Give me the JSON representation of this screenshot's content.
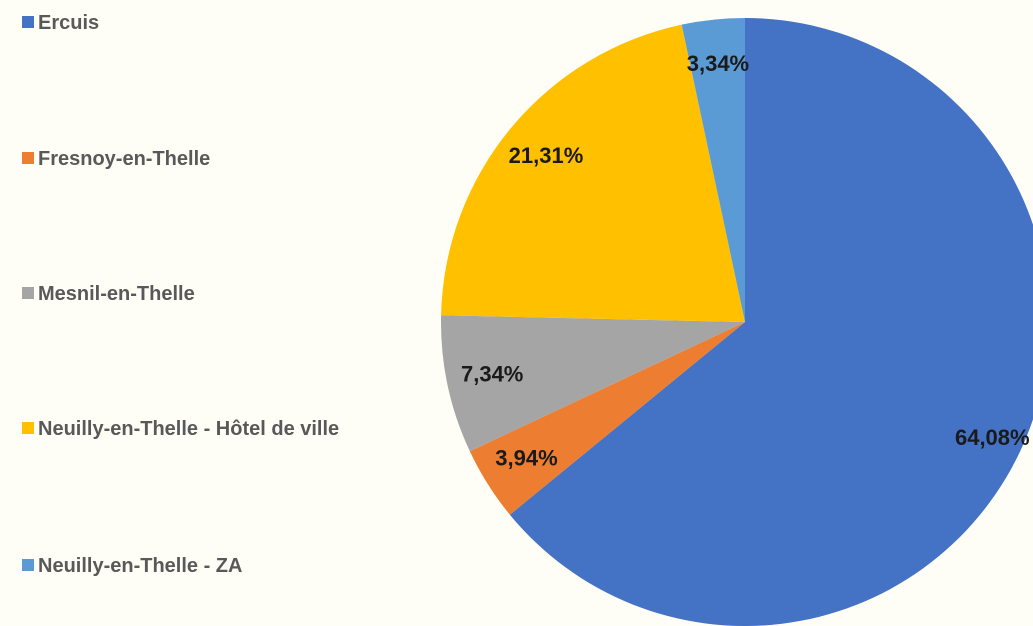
{
  "chart_data": {
    "type": "pie",
    "categories": [
      "Ercuis",
      "Fresnoy-en-Thelle",
      "Mesnil-en-Thelle",
      "Neuilly-en-Thelle - Hôtel de ville",
      "Neuilly-en-Thelle - ZA"
    ],
    "values": [
      64.08,
      3.94,
      7.34,
      21.31,
      3.34
    ],
    "value_labels": [
      "64,08%",
      "3,94%",
      "7,34%",
      "21,31%",
      "3,34%"
    ],
    "colors": [
      "#4472c4",
      "#ed7d31",
      "#a5a5a5",
      "#ffc000",
      "#5b9bd5"
    ],
    "legend": "left"
  }
}
